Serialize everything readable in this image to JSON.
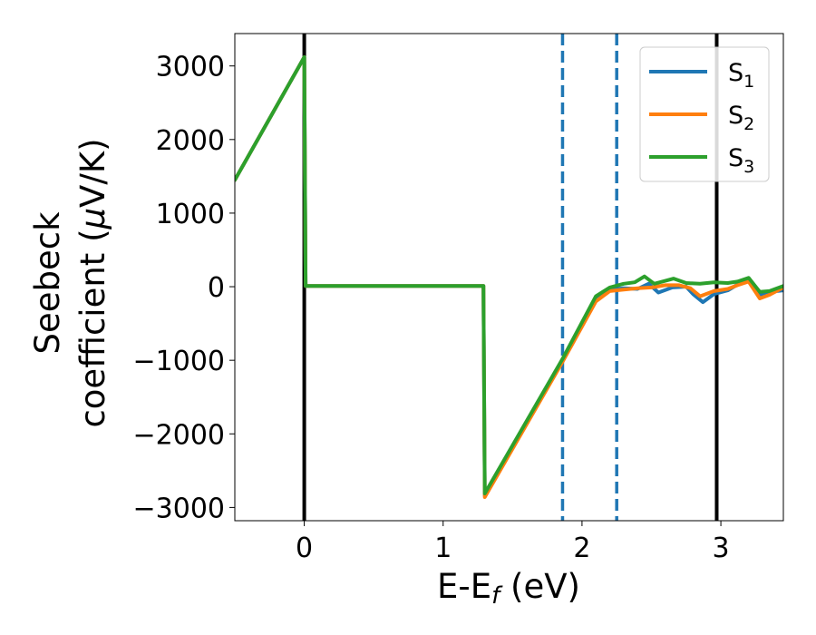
{
  "chart_data": {
    "type": "line",
    "xlabel": {
      "main": "E-E",
      "sub": "f",
      "unit": " (eV)"
    },
    "ylabel": {
      "line1": "Seebeck",
      "line2_prefix": "coefficient  (",
      "mu": "μ",
      "line2_suffix": "V/K)"
    },
    "xlim": [
      -0.5,
      3.45
    ],
    "ylim": [
      -3180,
      3440
    ],
    "xticks": [
      {
        "value": 0,
        "label": "0"
      },
      {
        "value": 1,
        "label": "1"
      },
      {
        "value": 2,
        "label": "2"
      },
      {
        "value": 3,
        "label": "3"
      }
    ],
    "yticks": [
      {
        "value": 3000,
        "label": "3000"
      },
      {
        "value": 2000,
        "label": "2000"
      },
      {
        "value": 1000,
        "label": "1000"
      },
      {
        "value": 0,
        "label": "0"
      },
      {
        "value": -1000,
        "label": "−1000"
      },
      {
        "value": -2000,
        "label": "−2000"
      },
      {
        "value": -3000,
        "label": "−3000"
      }
    ],
    "vlines": [
      {
        "x": 0,
        "style": "solid",
        "color": "#000000"
      },
      {
        "x": 1.86,
        "style": "dashed",
        "color": "#1f77b4"
      },
      {
        "x": 2.25,
        "style": "dashed",
        "color": "#1f77b4"
      },
      {
        "x": 2.97,
        "style": "solid",
        "color": "#000000"
      }
    ],
    "legend_position": "top-right",
    "series": [
      {
        "name": "S",
        "sub": "1",
        "color": "#1f77b4",
        "points": [
          [
            -0.5,
            1450
          ],
          [
            0,
            3120
          ],
          [
            0.01,
            10
          ],
          [
            1.29,
            10
          ],
          [
            1.3,
            -2840
          ],
          [
            1.86,
            -1000
          ],
          [
            2.1,
            -180
          ],
          [
            2.2,
            -40
          ],
          [
            2.3,
            -20
          ],
          [
            2.4,
            -30
          ],
          [
            2.48,
            40
          ],
          [
            2.55,
            -80
          ],
          [
            2.65,
            -10
          ],
          [
            2.75,
            0
          ],
          [
            2.8,
            -100
          ],
          [
            2.87,
            -210
          ],
          [
            2.95,
            -100
          ],
          [
            3.05,
            -50
          ],
          [
            3.12,
            30
          ],
          [
            3.2,
            80
          ],
          [
            3.28,
            -110
          ],
          [
            3.35,
            -70
          ],
          [
            3.45,
            -50
          ]
        ]
      },
      {
        "name": "S",
        "sub": "2",
        "color": "#ff7f0e",
        "points": [
          [
            -0.5,
            1450
          ],
          [
            0,
            3120
          ],
          [
            0.01,
            10
          ],
          [
            1.29,
            10
          ],
          [
            1.3,
            -2860
          ],
          [
            1.86,
            -1020
          ],
          [
            2.1,
            -200
          ],
          [
            2.2,
            -60
          ],
          [
            2.3,
            -40
          ],
          [
            2.4,
            -20
          ],
          [
            2.5,
            -10
          ],
          [
            2.6,
            20
          ],
          [
            2.7,
            20
          ],
          [
            2.78,
            -20
          ],
          [
            2.85,
            -130
          ],
          [
            2.95,
            -60
          ],
          [
            3.05,
            -30
          ],
          [
            3.12,
            20
          ],
          [
            3.2,
            70
          ],
          [
            3.28,
            -160
          ],
          [
            3.35,
            -110
          ],
          [
            3.45,
            -10
          ]
        ]
      },
      {
        "name": "S",
        "sub": "3",
        "color": "#2ca02c",
        "points": [
          [
            -0.5,
            1450
          ],
          [
            0,
            3120
          ],
          [
            0.01,
            10
          ],
          [
            1.29,
            10
          ],
          [
            1.3,
            -2810
          ],
          [
            1.86,
            -980
          ],
          [
            2.1,
            -130
          ],
          [
            2.2,
            -10
          ],
          [
            2.3,
            40
          ],
          [
            2.38,
            60
          ],
          [
            2.45,
            140
          ],
          [
            2.52,
            40
          ],
          [
            2.6,
            80
          ],
          [
            2.66,
            110
          ],
          [
            2.75,
            50
          ],
          [
            2.85,
            40
          ],
          [
            2.95,
            60
          ],
          [
            3.05,
            50
          ],
          [
            3.12,
            70
          ],
          [
            3.2,
            120
          ],
          [
            3.28,
            -70
          ],
          [
            3.35,
            -60
          ],
          [
            3.45,
            10
          ]
        ]
      }
    ]
  }
}
